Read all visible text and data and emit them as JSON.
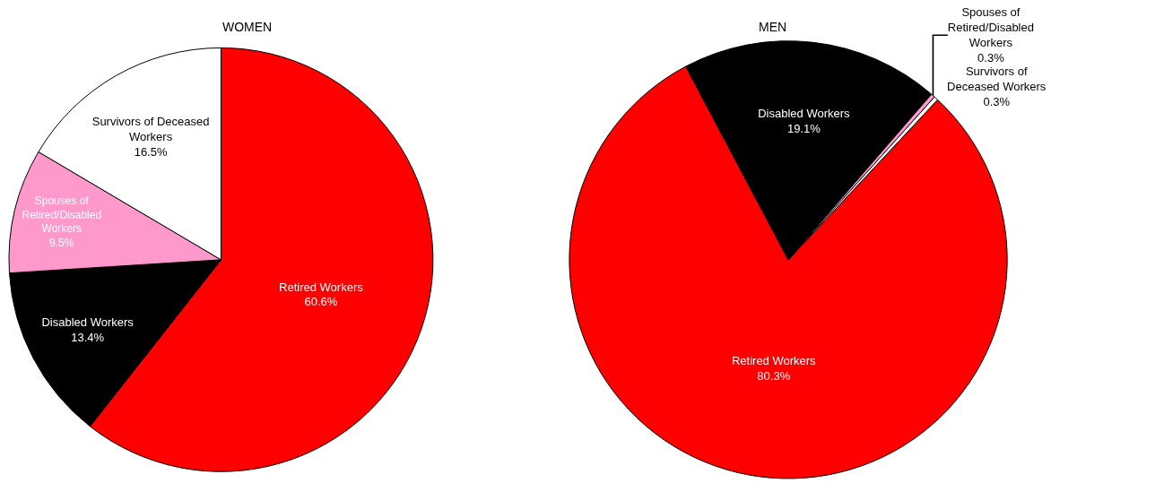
{
  "chart_data": [
    {
      "type": "pie",
      "title": "WOMEN",
      "categories": [
        "Retired Workers",
        "Disabled Workers",
        "Spouses of Retired/Disabled Workers",
        "Survivors of Deceased Workers"
      ],
      "values": [
        60.6,
        13.4,
        9.5,
        16.5
      ],
      "value_labels": [
        "60.6%",
        "13.4%",
        "9.5%",
        "16.5%"
      ],
      "colors": [
        "#ff0000",
        "#000000",
        "#ff99cc",
        "#ffffff"
      ],
      "legend": false
    },
    {
      "type": "pie",
      "title": "MEN",
      "categories": [
        "Retired Workers",
        "Disabled Workers",
        "Spouses of Retired/Disabled Workers",
        "Survivors of Deceased Workers"
      ],
      "values": [
        80.3,
        19.1,
        0.3,
        0.3
      ],
      "value_labels": [
        "80.3%",
        "19.1%",
        "0.3%",
        "0.3%"
      ],
      "colors": [
        "#ff0000",
        "#000000",
        "#ff99cc",
        "#ffffff"
      ],
      "legend": false
    }
  ]
}
